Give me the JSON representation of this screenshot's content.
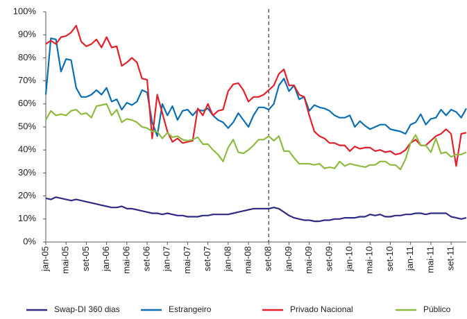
{
  "chart_data": {
    "type": "line",
    "categories": [
      "jan-05",
      null,
      null,
      null,
      "mai-05",
      null,
      null,
      null,
      "set-05",
      null,
      null,
      null,
      "jan-06",
      null,
      null,
      null,
      "mai-06",
      null,
      null,
      null,
      "set-06",
      null,
      null,
      null,
      "jan-07",
      null,
      null,
      null,
      "mai-07",
      null,
      null,
      null,
      "set-07",
      null,
      null,
      null,
      "jan-08",
      null,
      null,
      null,
      "mai-08",
      null,
      null,
      null,
      "set-08",
      null,
      null,
      null,
      "jan-09",
      null,
      null,
      null,
      "mai-09",
      null,
      null,
      null,
      "set-09",
      null,
      null,
      null,
      "jan-10",
      null,
      null,
      null,
      "mai-10",
      null,
      null,
      null,
      "set-10",
      null,
      null,
      null,
      "jan-11",
      null,
      null,
      null,
      "mai-11",
      null,
      null,
      null,
      "set-11",
      null,
      null,
      null
    ],
    "series": [
      {
        "name": "Swap-DI 360 dias",
        "color": "#2e2a86",
        "values": [
          19,
          18.5,
          19.5,
          19,
          18.5,
          18,
          18.5,
          18,
          17.5,
          17,
          16.5,
          16,
          15.5,
          15,
          15,
          15.5,
          14.5,
          14.5,
          14,
          13.5,
          13,
          12.5,
          12.5,
          12,
          12.5,
          12,
          11.5,
          11.5,
          11,
          11,
          11,
          11.5,
          11.5,
          12,
          12,
          12,
          12,
          12.5,
          13,
          13.5,
          14,
          14.5,
          14.5,
          14.5,
          14.5,
          15,
          14.5,
          13,
          11.5,
          10.5,
          10,
          9.5,
          9.5,
          9,
          9,
          9.5,
          9.5,
          10,
          10,
          10.5,
          10.5,
          10.5,
          11,
          11,
          12,
          11.5,
          12,
          11,
          11,
          11.5,
          11.5,
          12,
          12,
          12.5,
          12.5,
          12,
          12.5,
          12.5,
          12.5,
          12.5,
          11,
          10.5,
          10,
          10.5
        ]
      },
      {
        "name": "Estrangeiro",
        "color": "#0a6eb4",
        "values": [
          64,
          88.5,
          88,
          74,
          79.5,
          79,
          67,
          63,
          63,
          64,
          66,
          64,
          67,
          61,
          62,
          57.5,
          60.5,
          59.5,
          61,
          66,
          65,
          52,
          46,
          60,
          55,
          59,
          53,
          57,
          57.5,
          55,
          57.5,
          57,
          58,
          55,
          53,
          52,
          49.5,
          52,
          56,
          53,
          50,
          55,
          58.5,
          58.5,
          57.5,
          60,
          68,
          71,
          65.5,
          68,
          62,
          63,
          57,
          59.5,
          58.5,
          58,
          57,
          55,
          54,
          54,
          55,
          50,
          52.5,
          50.5,
          49,
          50,
          51,
          51,
          49,
          48.5,
          48,
          47,
          51,
          52,
          55.5,
          51,
          53.5,
          54,
          57.5,
          55,
          57.5,
          56.5,
          54,
          58
        ]
      },
      {
        "name": "Privado Nacional",
        "color": "#e3202a",
        "values": [
          86,
          87.5,
          86,
          89,
          89.5,
          91,
          94,
          87,
          85,
          86,
          88,
          84.5,
          89,
          84.5,
          85,
          76.5,
          78,
          80,
          78,
          71,
          70.5,
          45,
          64,
          56,
          48,
          43.5,
          45,
          43,
          43.5,
          44,
          58,
          55,
          60,
          55,
          57,
          57.5,
          65.5,
          68.5,
          69,
          66,
          61,
          63,
          63,
          64,
          66,
          68,
          73,
          75,
          68,
          68,
          64,
          63,
          55,
          48,
          46,
          45,
          43,
          43,
          42,
          42,
          39.5,
          41.5,
          40.5,
          41,
          41,
          39.5,
          40,
          39,
          39.5,
          38,
          38.5,
          40,
          43,
          44.5,
          42,
          42,
          44,
          46,
          47,
          49,
          47,
          33,
          47,
          47.5
        ]
      },
      {
        "name": "Público",
        "color": "#8dba3f",
        "values": [
          53,
          57,
          55,
          55.5,
          55,
          57,
          57.5,
          55.5,
          56,
          54,
          59,
          59.5,
          60,
          55,
          57.5,
          52,
          53.5,
          53,
          52,
          50,
          49.5,
          48,
          48,
          45,
          47.5,
          45.5,
          46,
          44.5,
          44,
          44.5,
          45.5,
          42.5,
          42.5,
          40,
          38,
          35,
          41,
          44.5,
          39,
          38.5,
          40,
          42,
          44.5,
          44.5,
          46,
          44,
          46,
          39.5,
          39.5,
          36.5,
          34,
          34,
          34,
          33.5,
          34,
          32,
          32.5,
          32,
          35,
          33,
          34,
          33.5,
          33,
          32.5,
          33.5,
          33.5,
          35,
          35,
          33.5,
          33.5,
          31.5,
          36,
          43,
          46.5,
          42,
          42,
          39,
          45,
          38.5,
          39,
          37,
          38,
          38,
          39
        ]
      }
    ],
    "ylim": [
      0,
      100
    ],
    "yticks": [
      {
        "value": 0,
        "label": "0%"
      },
      {
        "value": 10,
        "label": "10%"
      },
      {
        "value": 20,
        "label": "20%"
      },
      {
        "value": 30,
        "label": "30%"
      },
      {
        "value": 40,
        "label": "40%"
      },
      {
        "value": 50,
        "label": "50%"
      },
      {
        "value": 60,
        "label": "60%"
      },
      {
        "value": 70,
        "label": "70%"
      },
      {
        "value": 80,
        "label": "80%"
      },
      {
        "value": 90,
        "label": "90%"
      },
      {
        "value": 100,
        "label": "100%"
      }
    ],
    "grid": false,
    "legend": "bottom",
    "vertical_line": "set-08"
  }
}
